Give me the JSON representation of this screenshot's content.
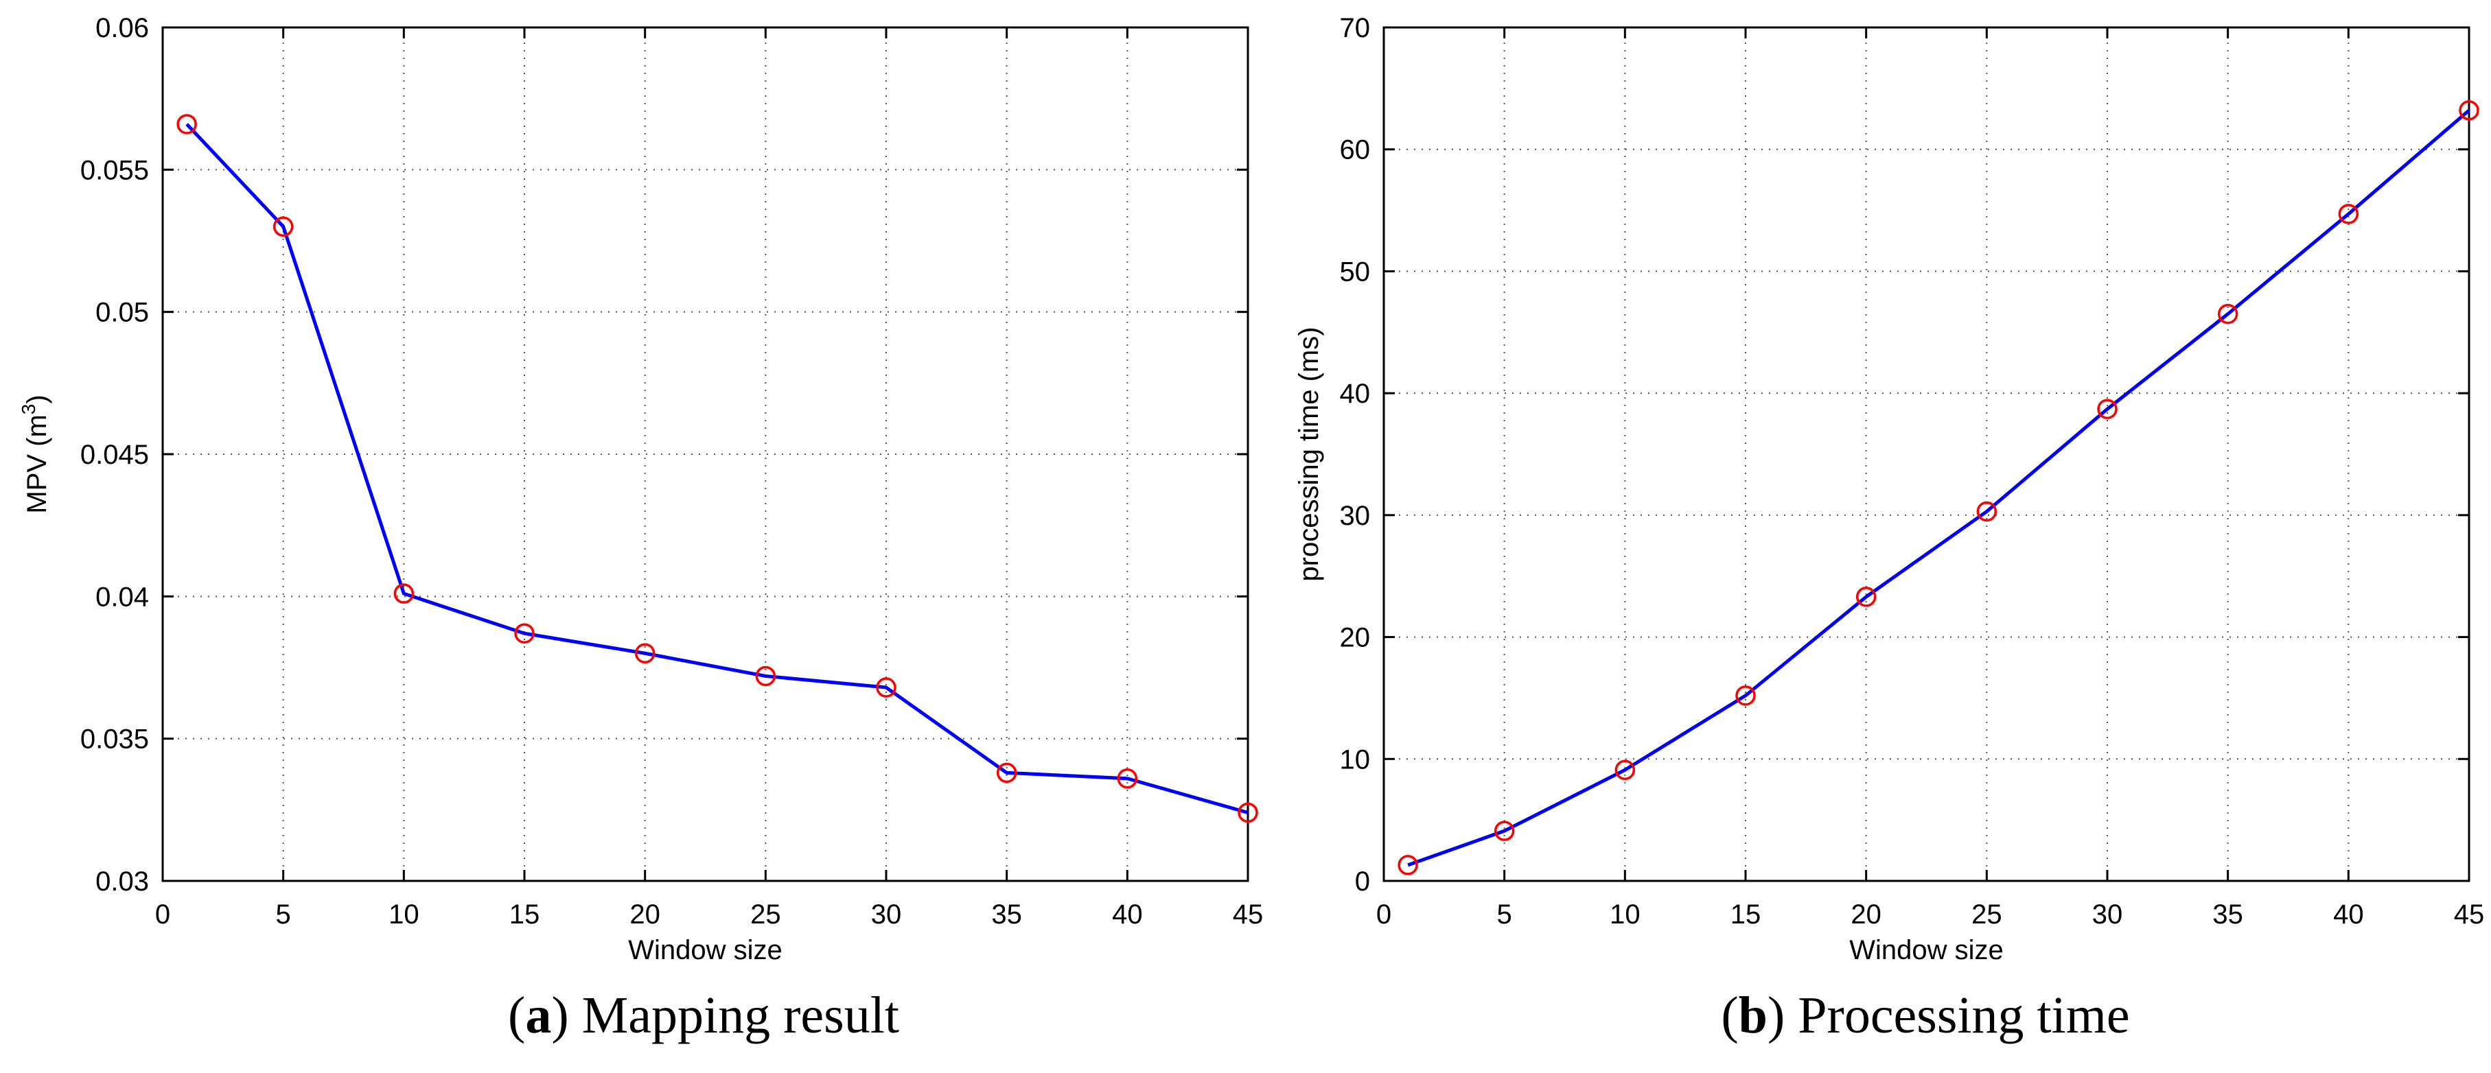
{
  "chart_data": [
    {
      "id": "a",
      "type": "line",
      "title": "",
      "xlabel": "Window size",
      "ylabel_prefix": "MPV (m",
      "ylabel_sup": "3",
      "ylabel_suffix": ")",
      "xlim": [
        0,
        45
      ],
      "ylim": [
        0.03,
        0.06
      ],
      "xticks": [
        0,
        5,
        10,
        15,
        20,
        25,
        30,
        35,
        40,
        45
      ],
      "xtick_labels": [
        "0",
        "5",
        "10",
        "15",
        "20",
        "25",
        "30",
        "35",
        "40",
        "45"
      ],
      "yticks": [
        0.03,
        0.035,
        0.04,
        0.045,
        0.05,
        0.055,
        0.06
      ],
      "ytick_labels": [
        "0.03",
        "0.035",
        "0.04",
        "0.045",
        "0.05",
        "0.055",
        "0.06"
      ],
      "grid": true,
      "series": [
        {
          "x": [
            1,
            5,
            10,
            15,
            20,
            25,
            30,
            35,
            40,
            45
          ],
          "y": [
            0.0566,
            0.053,
            0.0401,
            0.0387,
            0.038,
            0.0372,
            0.0368,
            0.0338,
            0.0336,
            0.0324
          ],
          "line_color": "#0000ff",
          "marker": "circle",
          "marker_color": "#ff0000"
        }
      ]
    },
    {
      "id": "b",
      "type": "line",
      "title": "",
      "xlabel": "Window size",
      "ylabel": "processing time (ms)",
      "xlim": [
        0,
        45
      ],
      "ylim": [
        0,
        70
      ],
      "xticks": [
        0,
        5,
        10,
        15,
        20,
        25,
        30,
        35,
        40,
        45
      ],
      "xtick_labels": [
        "0",
        "5",
        "10",
        "15",
        "20",
        "25",
        "30",
        "35",
        "40",
        "45"
      ],
      "yticks": [
        0,
        10,
        20,
        30,
        40,
        50,
        60,
        70
      ],
      "ytick_labels": [
        "0",
        "10",
        "20",
        "30",
        "40",
        "50",
        "60",
        "70"
      ],
      "grid": true,
      "series": [
        {
          "x": [
            1,
            5,
            10,
            15,
            20,
            25,
            30,
            35,
            40,
            45
          ],
          "y": [
            1.3,
            4.1,
            9.1,
            15.2,
            23.3,
            30.3,
            38.7,
            46.5,
            54.7,
            63.2
          ],
          "line_color": "#0000ff",
          "marker": "circle",
          "marker_color": "#ff0000"
        }
      ]
    }
  ],
  "captions": {
    "a": {
      "letter": "a",
      "text": "Mapping result"
    },
    "b": {
      "letter": "b",
      "text": "Processing time"
    }
  }
}
